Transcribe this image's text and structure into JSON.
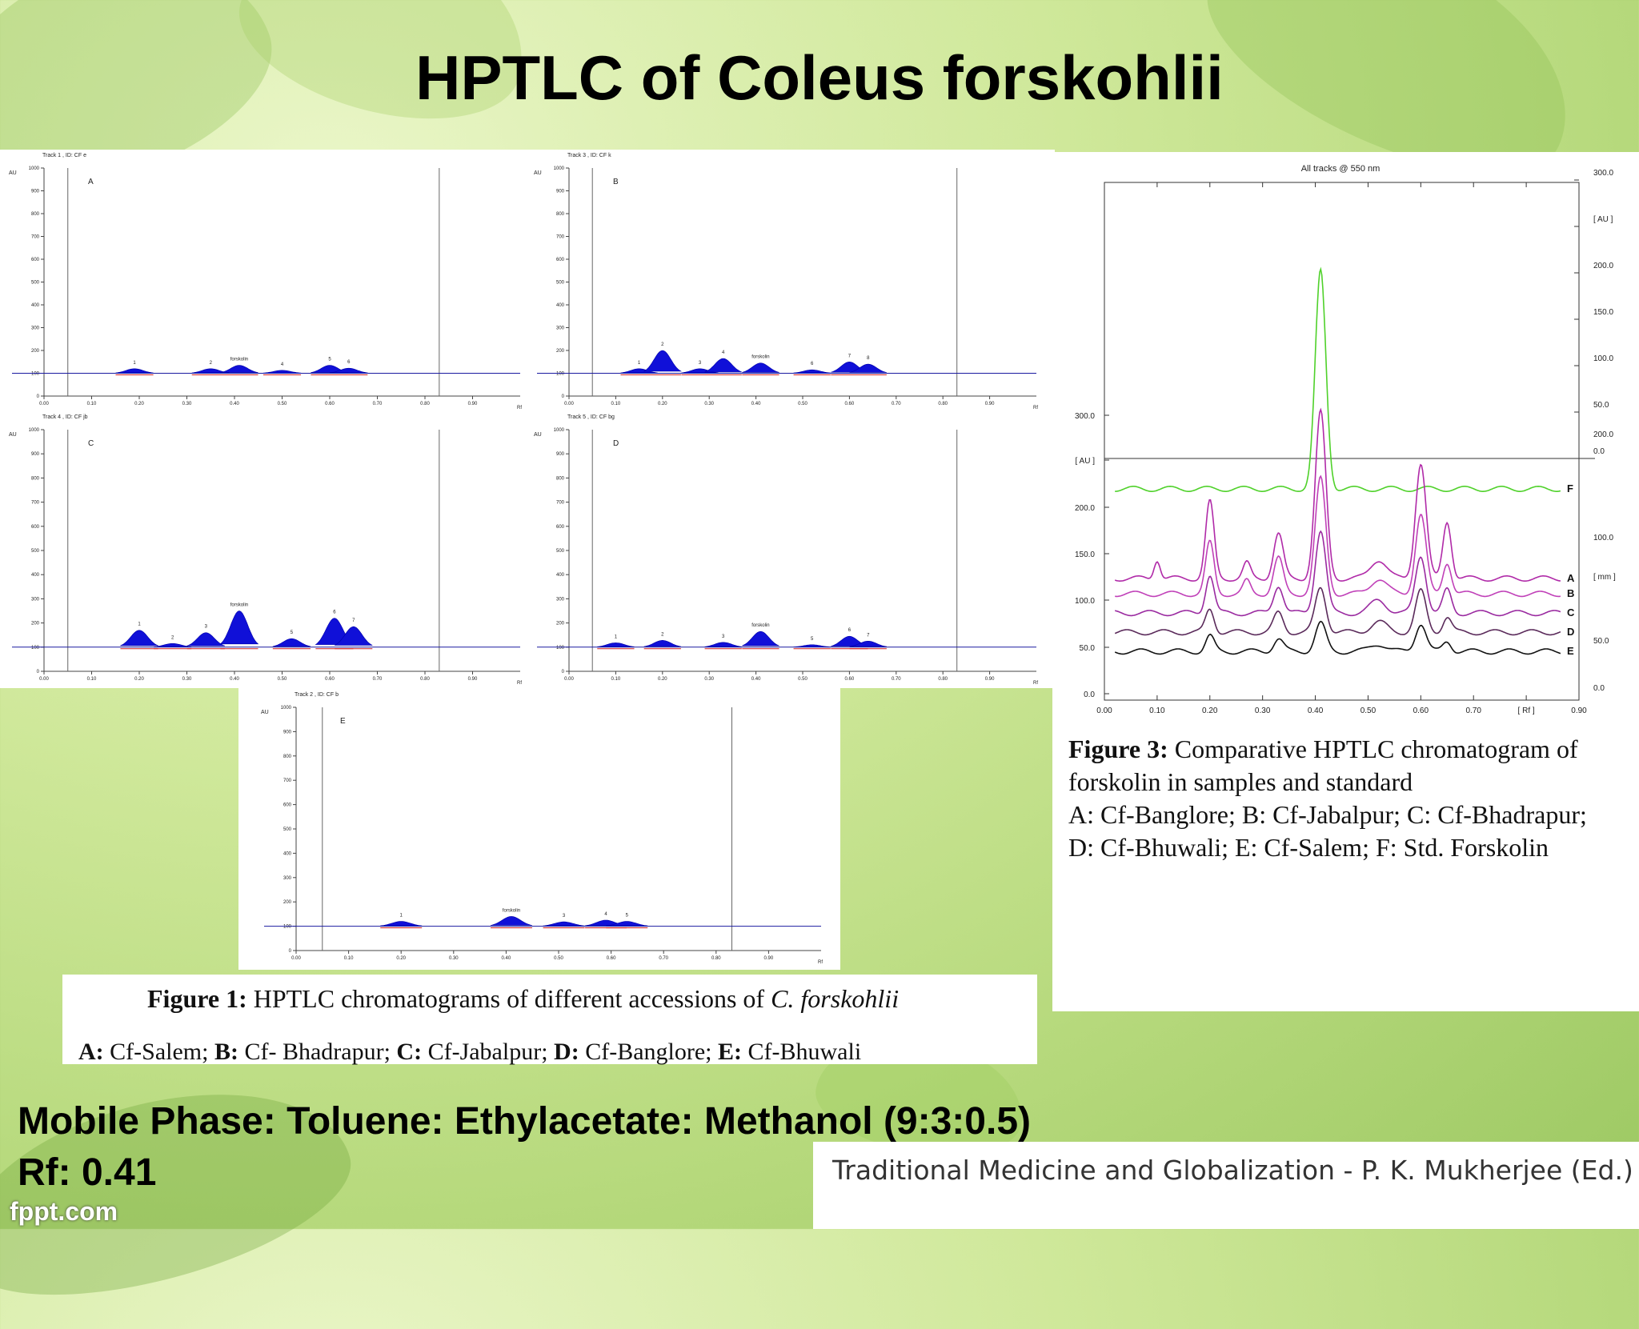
{
  "slide": {
    "title": "HPTLC of Coleus forskohlii",
    "mobile_phase": "Mobile Phase: Toluene: Ethylacetate: Methanol (9:3:0.5)",
    "rf": "Rf: 0.41",
    "watermark": "fppt.com",
    "source": "Traditional Medicine and Globalization - P. K. Mukherjee (Ed.)"
  },
  "figure1_caption": {
    "line1_bold": "Figure 1:",
    "line1_text": " HPTLC chromatograms of different accessions  of ",
    "line1_italic": "C. forskohlii",
    "line2": [
      {
        "b": "A:",
        "t": " Cf-Salem; "
      },
      {
        "b": "B:",
        "t": " Cf- Bhadrapur; "
      },
      {
        "b": "C:",
        "t": " Cf-Jabalpur; "
      },
      {
        "b": "D:",
        "t": " Cf-Banglore; "
      },
      {
        "b": "E:",
        "t": " Cf-Bhuwali"
      }
    ]
  },
  "figure3_caption": {
    "bold": "Figure 3:",
    "line1": " Comparative HPTLC chromatogram of",
    "line2": "forskolin in samples and standard",
    "line3": "A: Cf-Banglore; B: Cf-Jabalpur; C: Cf-Bhadrapur;",
    "line4": "D: Cf-Bhuwali; E: Cf-Salem; F: Std. Forskolin"
  },
  "chart_data": [
    {
      "type": "line",
      "panel": "A",
      "track": "Track  1 , ID: CF e",
      "ylabel": "AU",
      "xlabel": "Rf",
      "xlim": [
        0,
        1.0
      ],
      "ylim": [
        0,
        1000
      ],
      "x_ticks": [
        "0.00",
        "0.10",
        "0.20",
        "0.30",
        "0.40",
        "0.50",
        "0.60",
        "0.70",
        "0.80",
        "0.90"
      ],
      "y_ticks": [
        0,
        100,
        200,
        300,
        400,
        500,
        600,
        700,
        800,
        900,
        1000
      ],
      "baseline": 100,
      "front_lines": [
        0.05,
        0.83
      ],
      "peaks": [
        {
          "label": "1",
          "rf": 0.19,
          "height": 120
        },
        {
          "label": "2",
          "rf": 0.35,
          "height": 120
        },
        {
          "label": "forskolin",
          "rf": 0.41,
          "height": 135
        },
        {
          "label": "4",
          "rf": 0.5,
          "height": 113
        },
        {
          "label": "5",
          "rf": 0.6,
          "height": 135
        },
        {
          "label": "6",
          "rf": 0.64,
          "height": 122
        }
      ]
    },
    {
      "type": "line",
      "panel": "B",
      "track": "Track  3 , ID: CF k",
      "ylabel": "AU",
      "xlabel": "Rf",
      "xlim": [
        0,
        1.0
      ],
      "ylim": [
        0,
        1000
      ],
      "x_ticks": [
        "0.00",
        "0.10",
        "0.20",
        "0.30",
        "0.40",
        "0.50",
        "0.60",
        "0.70",
        "0.80",
        "0.90"
      ],
      "y_ticks": [
        0,
        100,
        200,
        300,
        400,
        500,
        600,
        700,
        800,
        900,
        1000
      ],
      "baseline": 100,
      "front_lines": [
        0.05,
        0.83
      ],
      "peaks": [
        {
          "label": "1",
          "rf": 0.15,
          "height": 120
        },
        {
          "label": "2",
          "rf": 0.2,
          "height": 200
        },
        {
          "label": "3",
          "rf": 0.28,
          "height": 120
        },
        {
          "label": "4",
          "rf": 0.33,
          "height": 165
        },
        {
          "label": "forskolin",
          "rf": 0.41,
          "height": 145
        },
        {
          "label": "6",
          "rf": 0.52,
          "height": 115
        },
        {
          "label": "7",
          "rf": 0.6,
          "height": 150
        },
        {
          "label": "8",
          "rf": 0.64,
          "height": 140
        }
      ]
    },
    {
      "type": "line",
      "panel": "C",
      "track": "Track  4 , ID: CF jb",
      "ylabel": "AU",
      "xlabel": "Rf",
      "xlim": [
        0,
        1.0
      ],
      "ylim": [
        0,
        1000
      ],
      "x_ticks": [
        "0.00",
        "0.10",
        "0.20",
        "0.30",
        "0.40",
        "0.50",
        "0.60",
        "0.70",
        "0.80",
        "0.90"
      ],
      "y_ticks": [
        0,
        100,
        200,
        300,
        400,
        500,
        600,
        700,
        800,
        900,
        1000
      ],
      "baseline": 100,
      "front_lines": [
        0.05,
        0.83
      ],
      "peaks": [
        {
          "label": "1",
          "rf": 0.2,
          "height": 170
        },
        {
          "label": "2",
          "rf": 0.27,
          "height": 115
        },
        {
          "label": "3",
          "rf": 0.34,
          "height": 160
        },
        {
          "label": "forskolin",
          "rf": 0.41,
          "height": 250
        },
        {
          "label": "5",
          "rf": 0.52,
          "height": 135
        },
        {
          "label": "6",
          "rf": 0.61,
          "height": 220
        },
        {
          "label": "7",
          "rf": 0.65,
          "height": 185
        }
      ]
    },
    {
      "type": "line",
      "panel": "D",
      "track": "Track  5 , ID: CF bg",
      "ylabel": "AU",
      "xlabel": "Rf",
      "xlim": [
        0,
        1.0
      ],
      "ylim": [
        0,
        1000
      ],
      "x_ticks": [
        "0.00",
        "0.10",
        "0.20",
        "0.30",
        "0.40",
        "0.50",
        "0.60",
        "0.70",
        "0.80",
        "0.90"
      ],
      "y_ticks": [
        0,
        100,
        200,
        300,
        400,
        500,
        600,
        700,
        800,
        900,
        1000
      ],
      "baseline": 100,
      "front_lines": [
        0.05,
        0.83
      ],
      "peaks": [
        {
          "label": "1",
          "rf": 0.1,
          "height": 118
        },
        {
          "label": "2",
          "rf": 0.2,
          "height": 128
        },
        {
          "label": "3",
          "rf": 0.33,
          "height": 120
        },
        {
          "label": "forskolin",
          "rf": 0.41,
          "height": 165
        },
        {
          "label": "5",
          "rf": 0.52,
          "height": 110
        },
        {
          "label": "6",
          "rf": 0.6,
          "height": 145
        },
        {
          "label": "7",
          "rf": 0.64,
          "height": 125
        }
      ]
    },
    {
      "type": "line",
      "panel": "E",
      "track": "Track  2 , ID: CF b",
      "ylabel": "AU",
      "xlabel": "Rf",
      "xlim": [
        0,
        1.0
      ],
      "ylim": [
        0,
        1000
      ],
      "x_ticks": [
        "0.00",
        "0.10",
        "0.20",
        "0.30",
        "0.40",
        "0.50",
        "0.60",
        "0.70",
        "0.80",
        "0.90"
      ],
      "y_ticks": [
        0,
        100,
        200,
        300,
        400,
        500,
        600,
        700,
        800,
        900,
        1000
      ],
      "baseline": 100,
      "front_lines": [
        0.05,
        0.83
      ],
      "peaks": [
        {
          "label": "1",
          "rf": 0.2,
          "height": 120
        },
        {
          "label": "forskolin",
          "rf": 0.41,
          "height": 140
        },
        {
          "label": "3",
          "rf": 0.51,
          "height": 118
        },
        {
          "label": "4",
          "rf": 0.59,
          "height": 125
        },
        {
          "label": "5",
          "rf": 0.63,
          "height": 120
        }
      ]
    },
    {
      "type": "line",
      "panel": "Fig3",
      "title": "All tracks @ 550 nm",
      "xlabel": "[ Rf ]",
      "xlim": [
        0,
        0.9
      ],
      "x_ticks": [
        "0.00",
        "0.10",
        "0.20",
        "0.30",
        "0.40",
        "0.50",
        "0.60",
        "0.70",
        "[ Rf ]",
        "0.90"
      ],
      "left_top_ticks": [
        "0.0",
        "50.0",
        "100.0",
        "150.0",
        "200.0",
        "[ AU ]",
        "300.0"
      ],
      "left_bottom_ticks": [
        "0.0",
        "50.0",
        "100.0",
        "150.0",
        "200.0",
        "[ AU ]",
        "300.0"
      ],
      "right_top_ticks": [
        "0.0",
        "50.0",
        "100.0",
        "150.0",
        "200.0",
        "[ AU ]",
        "300.0"
      ],
      "right_bottom_ticks": [
        "0.0",
        "50.0",
        "[ mm ]",
        "100.0",
        "200.0"
      ],
      "series": [
        {
          "name": "F",
          "color": "#4fd12a",
          "offset": 160,
          "peaks": [
            {
              "rf": 0.41,
              "h": 170,
              "w": 0.01
            }
          ]
        },
        {
          "name": "A",
          "color": "#b02aa8",
          "offset": 90,
          "peaks": [
            {
              "rf": 0.1,
              "h": 15,
              "w": 0.006
            },
            {
              "rf": 0.2,
              "h": 60,
              "w": 0.008
            },
            {
              "rf": 0.27,
              "h": 12,
              "w": 0.007
            },
            {
              "rf": 0.33,
              "h": 35,
              "w": 0.009
            },
            {
              "rf": 0.41,
              "h": 130,
              "w": 0.01
            },
            {
              "rf": 0.52,
              "h": 15,
              "w": 0.015
            },
            {
              "rf": 0.6,
              "h": 90,
              "w": 0.01
            },
            {
              "rf": 0.65,
              "h": 45,
              "w": 0.008
            }
          ]
        },
        {
          "name": "B",
          "color": "#c040b8",
          "offset": 78,
          "peaks": [
            {
              "rf": 0.2,
              "h": 40,
              "w": 0.008
            },
            {
              "rf": 0.27,
              "h": 10,
              "w": 0.007
            },
            {
              "rf": 0.33,
              "h": 28,
              "w": 0.009
            },
            {
              "rf": 0.41,
              "h": 90,
              "w": 0.01
            },
            {
              "rf": 0.52,
              "h": 12,
              "w": 0.015
            },
            {
              "rf": 0.6,
              "h": 62,
              "w": 0.01
            },
            {
              "rf": 0.65,
              "h": 25,
              "w": 0.008
            }
          ]
        },
        {
          "name": "C",
          "color": "#9a2aa0",
          "offset": 63,
          "peaks": [
            {
              "rf": 0.2,
              "h": 30,
              "w": 0.008
            },
            {
              "rf": 0.33,
              "h": 22,
              "w": 0.009
            },
            {
              "rf": 0.41,
              "h": 65,
              "w": 0.01
            },
            {
              "rf": 0.52,
              "h": 10,
              "w": 0.015
            },
            {
              "rf": 0.6,
              "h": 45,
              "w": 0.01
            },
            {
              "rf": 0.65,
              "h": 18,
              "w": 0.008
            }
          ]
        },
        {
          "name": "D",
          "color": "#5a2a5a",
          "offset": 48,
          "peaks": [
            {
              "rf": 0.2,
              "h": 18,
              "w": 0.008
            },
            {
              "rf": 0.33,
              "h": 15,
              "w": 0.009
            },
            {
              "rf": 0.41,
              "h": 35,
              "w": 0.01
            },
            {
              "rf": 0.52,
              "h": 8,
              "w": 0.015
            },
            {
              "rf": 0.6,
              "h": 32,
              "w": 0.01
            },
            {
              "rf": 0.65,
              "h": 12,
              "w": 0.008
            }
          ]
        },
        {
          "name": "E",
          "color": "#111111",
          "offset": 33,
          "peaks": [
            {
              "rf": 0.2,
              "h": 12,
              "w": 0.008
            },
            {
              "rf": 0.33,
              "h": 10,
              "w": 0.009
            },
            {
              "rf": 0.41,
              "h": 22,
              "w": 0.01
            },
            {
              "rf": 0.52,
              "h": 6,
              "w": 0.015
            },
            {
              "rf": 0.6,
              "h": 22,
              "w": 0.01
            },
            {
              "rf": 0.65,
              "h": 8,
              "w": 0.008
            }
          ]
        }
      ]
    }
  ]
}
